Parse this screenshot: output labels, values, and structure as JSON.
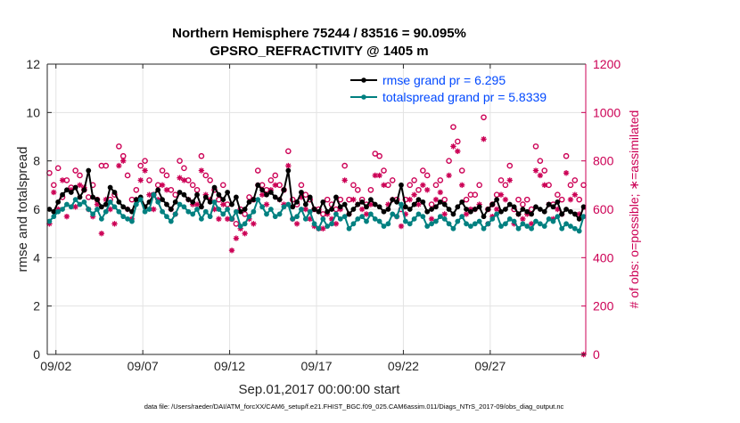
{
  "chart_data": {
    "type": "line",
    "title": "Northern Hemisphere 75244 / 83516 = 90.095%",
    "subtitle": "GPSRO_REFRACTIVITY @ 1405 m",
    "xlabel": "Sep.01,2017 00:00:00 start",
    "ylabel": "rmse and totalspread",
    "y2label": "# of obs: o=possible; ∗=assimilated",
    "xlim": [
      1.5,
      32.5
    ],
    "ylim": [
      0,
      12
    ],
    "y2lim": [
      0,
      1200
    ],
    "x_ticks": [
      2,
      7,
      12,
      17,
      22,
      27
    ],
    "x_tick_labels": [
      "09/02",
      "09/07",
      "09/12",
      "09/17",
      "09/22",
      "09/27"
    ],
    "y_ticks": [
      0,
      2,
      4,
      6,
      8,
      10,
      12
    ],
    "y2_ticks": [
      0,
      200,
      400,
      600,
      800,
      1000,
      1200
    ],
    "grid": true,
    "legend_position": "top-right",
    "footnote": "data file: /Users/raeder/DAI/ATM_forcXX/CAM6_setup/f.e21.FHIST_BGC.f09_025.CAM6assim.011/Diags_NTrS_2017-09/obs_diag_output.nc",
    "series": [
      {
        "name": "rmse grand pr = 6.295",
        "color": "#000000",
        "x": [
          1.625,
          1.875,
          2.125,
          2.375,
          2.625,
          2.875,
          3.125,
          3.375,
          3.625,
          3.875,
          4.125,
          4.375,
          4.625,
          4.875,
          5.125,
          5.375,
          5.625,
          5.875,
          6.125,
          6.375,
          6.625,
          6.875,
          7.125,
          7.375,
          7.625,
          7.875,
          8.125,
          8.375,
          8.625,
          8.875,
          9.125,
          9.375,
          9.625,
          9.875,
          10.125,
          10.375,
          10.625,
          10.875,
          11.125,
          11.375,
          11.625,
          11.875,
          12.125,
          12.375,
          12.625,
          12.875,
          13.125,
          13.375,
          13.625,
          13.875,
          14.125,
          14.375,
          14.625,
          14.875,
          15.125,
          15.375,
          15.625,
          15.875,
          16.125,
          16.375,
          16.625,
          16.875,
          17.125,
          17.375,
          17.625,
          17.875,
          18.125,
          18.375,
          18.625,
          18.875,
          19.125,
          19.375,
          19.625,
          19.875,
          20.125,
          20.375,
          20.625,
          20.875,
          21.125,
          21.375,
          21.625,
          21.875,
          22.125,
          22.375,
          22.625,
          22.875,
          23.125,
          23.375,
          23.625,
          23.875,
          24.125,
          24.375,
          24.625,
          24.875,
          25.125,
          25.375,
          25.625,
          25.875,
          26.125,
          26.375,
          26.625,
          26.875,
          27.125,
          27.375,
          27.625,
          27.875,
          28.125,
          28.375,
          28.625,
          28.875,
          29.125,
          29.375,
          29.625,
          29.875,
          30.125,
          30.375,
          30.625,
          30.875,
          31.125,
          31.375,
          31.625,
          31.875,
          32.125,
          32.375
        ],
        "values": [
          6.0,
          5.9,
          6.3,
          6.6,
          6.8,
          6.7,
          6.9,
          6.5,
          6.8,
          7.6,
          6.5,
          6.4,
          6.1,
          6.2,
          6.9,
          6.7,
          6.3,
          6.1,
          6.0,
          5.9,
          6.4,
          6.5,
          6.1,
          6.3,
          6.6,
          6.8,
          6.4,
          6.2,
          6.0,
          6.3,
          6.7,
          6.6,
          6.4,
          6.3,
          6.6,
          6.1,
          6.5,
          6.3,
          6.9,
          6.6,
          6.4,
          6.7,
          6.2,
          6.5,
          5.9,
          6.0,
          6.3,
          6.4,
          7.0,
          6.8,
          6.6,
          6.7,
          6.5,
          6.4,
          6.8,
          7.6,
          6.1,
          6.3,
          6.7,
          6.2,
          6.5,
          6.0,
          5.9,
          6.3,
          5.9,
          6.0,
          6.5,
          6.1,
          6.2,
          5.8,
          6.0,
          6.2,
          6.3,
          6.1,
          6.4,
          6.2,
          6.1,
          5.9,
          6.0,
          6.4,
          6.3,
          7.0,
          6.1,
          6.0,
          6.2,
          6.4,
          6.3,
          5.9,
          6.0,
          6.1,
          6.3,
          6.2,
          6.0,
          5.8,
          6.1,
          6.3,
          6.0,
          5.9,
          6.0,
          6.1,
          5.7,
          6.0,
          6.2,
          6.4,
          5.9,
          6.0,
          6.2,
          6.1,
          5.8,
          6.0,
          5.9,
          5.8,
          6.1,
          6.0,
          5.9,
          6.2,
          6.1,
          6.3,
          5.8,
          6.0,
          5.9,
          5.8,
          5.6,
          6.1
        ]
      },
      {
        "name": "totalspread grand pr = 5.8339",
        "color": "#008080",
        "x": [
          1.625,
          1.875,
          2.125,
          2.375,
          2.625,
          2.875,
          3.125,
          3.375,
          3.625,
          3.875,
          4.125,
          4.375,
          4.625,
          4.875,
          5.125,
          5.375,
          5.625,
          5.875,
          6.125,
          6.375,
          6.625,
          6.875,
          7.125,
          7.375,
          7.625,
          7.875,
          8.125,
          8.375,
          8.625,
          8.875,
          9.125,
          9.375,
          9.625,
          9.875,
          10.125,
          10.375,
          10.625,
          10.875,
          11.125,
          11.375,
          11.625,
          11.875,
          12.125,
          12.375,
          12.625,
          12.875,
          13.125,
          13.375,
          13.625,
          13.875,
          14.125,
          14.375,
          14.625,
          14.875,
          15.125,
          15.375,
          15.625,
          15.875,
          16.125,
          16.375,
          16.625,
          16.875,
          17.125,
          17.375,
          17.625,
          17.875,
          18.125,
          18.375,
          18.625,
          18.875,
          19.125,
          19.375,
          19.625,
          19.875,
          20.125,
          20.375,
          20.625,
          20.875,
          21.125,
          21.375,
          21.625,
          21.875,
          22.125,
          22.375,
          22.625,
          22.875,
          23.125,
          23.375,
          23.625,
          23.875,
          24.125,
          24.375,
          24.625,
          24.875,
          25.125,
          25.375,
          25.625,
          25.875,
          26.125,
          26.375,
          26.625,
          26.875,
          27.125,
          27.375,
          27.625,
          27.875,
          28.125,
          28.375,
          28.625,
          28.875,
          29.125,
          29.375,
          29.625,
          29.875,
          30.125,
          30.375,
          30.625,
          30.875,
          31.125,
          31.375,
          31.625,
          31.875,
          32.125,
          32.375
        ],
        "values": [
          5.5,
          5.7,
          5.9,
          6.0,
          6.2,
          6.1,
          6.4,
          6.2,
          6.3,
          6.0,
          5.8,
          6.0,
          5.6,
          5.9,
          6.3,
          6.1,
          5.9,
          5.7,
          5.6,
          5.5,
          6.2,
          6.4,
          5.9,
          6.0,
          6.6,
          6.3,
          5.9,
          5.7,
          5.5,
          5.8,
          6.2,
          6.1,
          5.9,
          5.8,
          6.0,
          5.6,
          5.9,
          5.7,
          6.3,
          6.0,
          5.8,
          6.0,
          5.6,
          5.9,
          5.3,
          5.4,
          5.7,
          5.9,
          6.4,
          6.1,
          5.8,
          6.0,
          5.7,
          5.8,
          6.1,
          6.2,
          5.6,
          5.7,
          6.0,
          5.6,
          5.9,
          5.4,
          5.2,
          5.6,
          5.3,
          5.4,
          5.8,
          5.6,
          5.7,
          5.2,
          5.4,
          5.6,
          5.7,
          5.5,
          5.8,
          5.6,
          5.5,
          5.3,
          5.4,
          5.8,
          5.7,
          6.2,
          5.5,
          5.4,
          5.6,
          5.8,
          5.7,
          5.3,
          5.4,
          5.5,
          5.7,
          5.6,
          5.4,
          5.2,
          5.5,
          5.7,
          5.4,
          5.3,
          5.4,
          5.5,
          5.2,
          5.4,
          5.6,
          5.8,
          5.3,
          5.4,
          5.6,
          5.5,
          5.2,
          5.4,
          5.3,
          5.2,
          5.5,
          5.4,
          5.3,
          5.6,
          5.5,
          5.7,
          5.2,
          5.4,
          5.3,
          5.2,
          5.1,
          5.7
        ]
      },
      {
        "name": "possible obs count",
        "axis": "right",
        "marker": "o",
        "color": "#cc0055",
        "x": [
          1.625,
          1.875,
          2.125,
          2.375,
          2.625,
          2.875,
          3.125,
          3.375,
          3.625,
          3.875,
          4.125,
          4.375,
          4.625,
          4.875,
          5.125,
          5.375,
          5.625,
          5.875,
          6.125,
          6.375,
          6.625,
          6.875,
          7.125,
          7.375,
          7.625,
          7.875,
          8.125,
          8.375,
          8.625,
          8.875,
          9.125,
          9.375,
          9.625,
          9.875,
          10.125,
          10.375,
          10.625,
          10.875,
          11.125,
          11.375,
          11.625,
          11.875,
          12.125,
          12.375,
          12.625,
          12.875,
          13.125,
          13.375,
          13.625,
          13.875,
          14.125,
          14.375,
          14.625,
          14.875,
          15.125,
          15.375,
          15.625,
          15.875,
          16.125,
          16.375,
          16.625,
          16.875,
          17.125,
          17.375,
          17.625,
          17.875,
          18.125,
          18.375,
          18.625,
          18.875,
          19.125,
          19.375,
          19.625,
          19.875,
          20.125,
          20.375,
          20.625,
          20.875,
          21.125,
          21.375,
          21.625,
          21.875,
          22.125,
          22.375,
          22.625,
          22.875,
          23.125,
          23.375,
          23.625,
          23.875,
          24.125,
          24.375,
          24.625,
          24.875,
          25.125,
          25.375,
          25.625,
          25.875,
          26.125,
          26.375,
          26.625,
          26.875,
          27.125,
          27.375,
          27.625,
          27.875,
          28.125,
          28.375,
          28.625,
          28.875,
          29.125,
          29.375,
          29.625,
          29.875,
          30.125,
          30.375,
          30.625,
          30.875,
          31.125,
          31.375,
          31.625,
          31.875,
          32.125,
          32.375
        ],
        "values": [
          750,
          700,
          770,
          650,
          720,
          690,
          760,
          740,
          680,
          650,
          700,
          640,
          780,
          780,
          640,
          660,
          860,
          820,
          740,
          640,
          680,
          780,
          800,
          720,
          660,
          700,
          760,
          740,
          680,
          660,
          800,
          770,
          720,
          700,
          680,
          820,
          740,
          720,
          680,
          640,
          700,
          620,
          560,
          540,
          600,
          580,
          650,
          640,
          760,
          700,
          680,
          720,
          740,
          700,
          680,
          840,
          640,
          620,
          700,
          660,
          640,
          600,
          600,
          580,
          640,
          620,
          600,
          640,
          780,
          640,
          700,
          680,
          640,
          620,
          680,
          830,
          820,
          760,
          700,
          720,
          640,
          600,
          640,
          700,
          720,
          680,
          760,
          740,
          620,
          700,
          720,
          640,
          800,
          940,
          880,
          760,
          640,
          660,
          660,
          700,
          980,
          600,
          620,
          660,
          720,
          700,
          780,
          600,
          640,
          620,
          640,
          600,
          860,
          800,
          760,
          700,
          620,
          660,
          640,
          820,
          700,
          720,
          640,
          700
        ]
      },
      {
        "name": "assimilated obs count",
        "axis": "right",
        "marker": "*",
        "color": "#cc0055",
        "x": [
          1.625,
          1.875,
          2.125,
          2.375,
          2.625,
          2.875,
          3.125,
          3.375,
          3.625,
          3.875,
          4.125,
          4.375,
          4.625,
          4.875,
          5.125,
          5.375,
          5.625,
          5.875,
          6.125,
          6.375,
          6.625,
          6.875,
          7.125,
          7.375,
          7.625,
          7.875,
          8.125,
          8.375,
          8.625,
          8.875,
          9.125,
          9.375,
          9.625,
          9.875,
          10.125,
          10.375,
          10.625,
          10.875,
          11.125,
          11.375,
          11.625,
          11.875,
          12.125,
          12.375,
          12.625,
          12.875,
          13.125,
          13.375,
          13.625,
          13.875,
          14.125,
          14.375,
          14.625,
          14.875,
          15.125,
          15.375,
          15.625,
          15.875,
          16.125,
          16.375,
          16.625,
          16.875,
          17.125,
          17.375,
          17.625,
          17.875,
          18.125,
          18.375,
          18.625,
          18.875,
          19.125,
          19.375,
          19.625,
          19.875,
          20.125,
          20.375,
          20.625,
          20.875,
          21.125,
          21.375,
          21.625,
          21.875,
          22.125,
          22.375,
          22.625,
          22.875,
          23.125,
          23.375,
          23.625,
          23.875,
          24.125,
          24.375,
          24.625,
          24.875,
          25.125,
          25.375,
          25.625,
          25.875,
          26.125,
          26.375,
          26.625,
          26.875,
          27.125,
          27.375,
          27.625,
          27.875,
          28.125,
          28.375,
          28.625,
          28.875,
          29.125,
          29.375,
          29.625,
          29.875,
          30.125,
          30.375,
          30.625,
          30.875,
          31.125,
          31.375,
          31.625,
          31.875,
          32.125,
          32.375
        ],
        "values": [
          540,
          670,
          600,
          720,
          570,
          680,
          610,
          700,
          690,
          600,
          570,
          620,
          500,
          640,
          600,
          540,
          780,
          800,
          600,
          560,
          640,
          720,
          760,
          660,
          600,
          640,
          700,
          680,
          600,
          580,
          730,
          720,
          640,
          620,
          620,
          760,
          660,
          640,
          600,
          560,
          620,
          560,
          430,
          480,
          520,
          500,
          560,
          540,
          700,
          660,
          620,
          680,
          700,
          640,
          620,
          780,
          560,
          540,
          650,
          600,
          560,
          530,
          520,
          520,
          580,
          560,
          540,
          600,
          720,
          580,
          640,
          620,
          600,
          580,
          620,
          740,
          740,
          700,
          620,
          640,
          570,
          530,
          580,
          640,
          660,
          620,
          700,
          680,
          560,
          640,
          670,
          580,
          740,
          860,
          840,
          700,
          580,
          600,
          600,
          620,
          890,
          540,
          570,
          600,
          660,
          640,
          720,
          540,
          580,
          560,
          580,
          540,
          760,
          740,
          700,
          620,
          560,
          600,
          580,
          750,
          640,
          660,
          580,
          0
        ]
      }
    ]
  }
}
